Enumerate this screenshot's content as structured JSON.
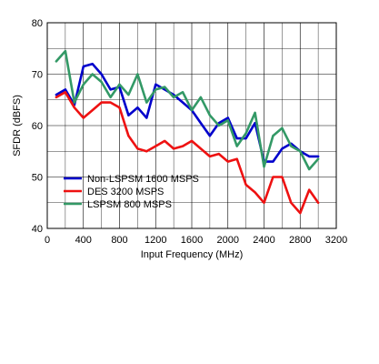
{
  "chart_data": {
    "type": "line",
    "title": "",
    "xlabel": "Input Frequency (MHz)",
    "ylabel": "SFDR (dBFS)",
    "xlim": [
      0,
      3200
    ],
    "ylim": [
      40,
      80
    ],
    "xticks": [
      0,
      400,
      800,
      1200,
      1600,
      2000,
      2400,
      2800,
      3200
    ],
    "yticks": [
      40,
      50,
      60,
      70,
      80
    ],
    "grid": true,
    "legend_position": "bottom-left",
    "series": [
      {
        "name": "Non-LSPSM 1600 MSPS",
        "color": "#0000cc",
        "x": [
          100,
          200,
          300,
          400,
          500,
          600,
          700,
          800,
          900,
          1000,
          1100,
          1200,
          1300,
          1400,
          1500,
          1600,
          1700,
          1800,
          1900,
          2000,
          2100,
          2200,
          2300,
          2400,
          2500,
          2600,
          2700,
          2800,
          2900,
          3000
        ],
        "values": [
          66.0,
          67.0,
          64.0,
          71.5,
          72.0,
          70.0,
          67.0,
          67.5,
          62.0,
          63.5,
          61.5,
          68.0,
          67.0,
          66.0,
          64.5,
          63.0,
          60.5,
          58.0,
          60.5,
          61.5,
          57.5,
          57.5,
          60.5,
          53.0,
          53.0,
          55.5,
          56.5,
          55.0,
          54.0,
          54.0
        ]
      },
      {
        "name": "DES 3200 MSPS",
        "color": "#ee1111",
        "x": [
          100,
          200,
          300,
          400,
          500,
          600,
          700,
          800,
          900,
          1000,
          1100,
          1200,
          1300,
          1400,
          1500,
          1600,
          1700,
          1800,
          1900,
          2000,
          2100,
          2200,
          2300,
          2400,
          2500,
          2600,
          2700,
          2800,
          2900,
          3000
        ],
        "values": [
          65.5,
          66.5,
          63.5,
          61.5,
          63.0,
          64.5,
          64.5,
          63.5,
          58.0,
          55.5,
          55.0,
          56.0,
          57.0,
          55.5,
          56.0,
          57.0,
          55.5,
          54.0,
          54.5,
          53.0,
          53.5,
          48.5,
          47.0,
          45.0,
          50.0,
          50.0,
          45.0,
          43.0,
          47.5,
          45.0
        ]
      },
      {
        "name": "LSPSM 800 MSPS",
        "color": "#339966",
        "x": [
          100,
          200,
          300,
          400,
          500,
          600,
          700,
          800,
          900,
          1000,
          1100,
          1200,
          1300,
          1400,
          1500,
          1600,
          1700,
          1800,
          1900,
          2000,
          2100,
          2200,
          2300,
          2400,
          2500,
          2600,
          2700,
          2800,
          2900,
          3000
        ],
        "values": [
          72.5,
          74.5,
          64.5,
          68.0,
          70.0,
          68.5,
          65.5,
          68.0,
          66.0,
          70.0,
          64.5,
          67.0,
          67.5,
          65.5,
          66.5,
          63.0,
          65.5,
          62.0,
          60.0,
          61.0,
          56.0,
          58.5,
          62.5,
          52.0,
          58.0,
          59.5,
          56.0,
          55.0,
          51.5,
          53.5
        ]
      }
    ]
  }
}
